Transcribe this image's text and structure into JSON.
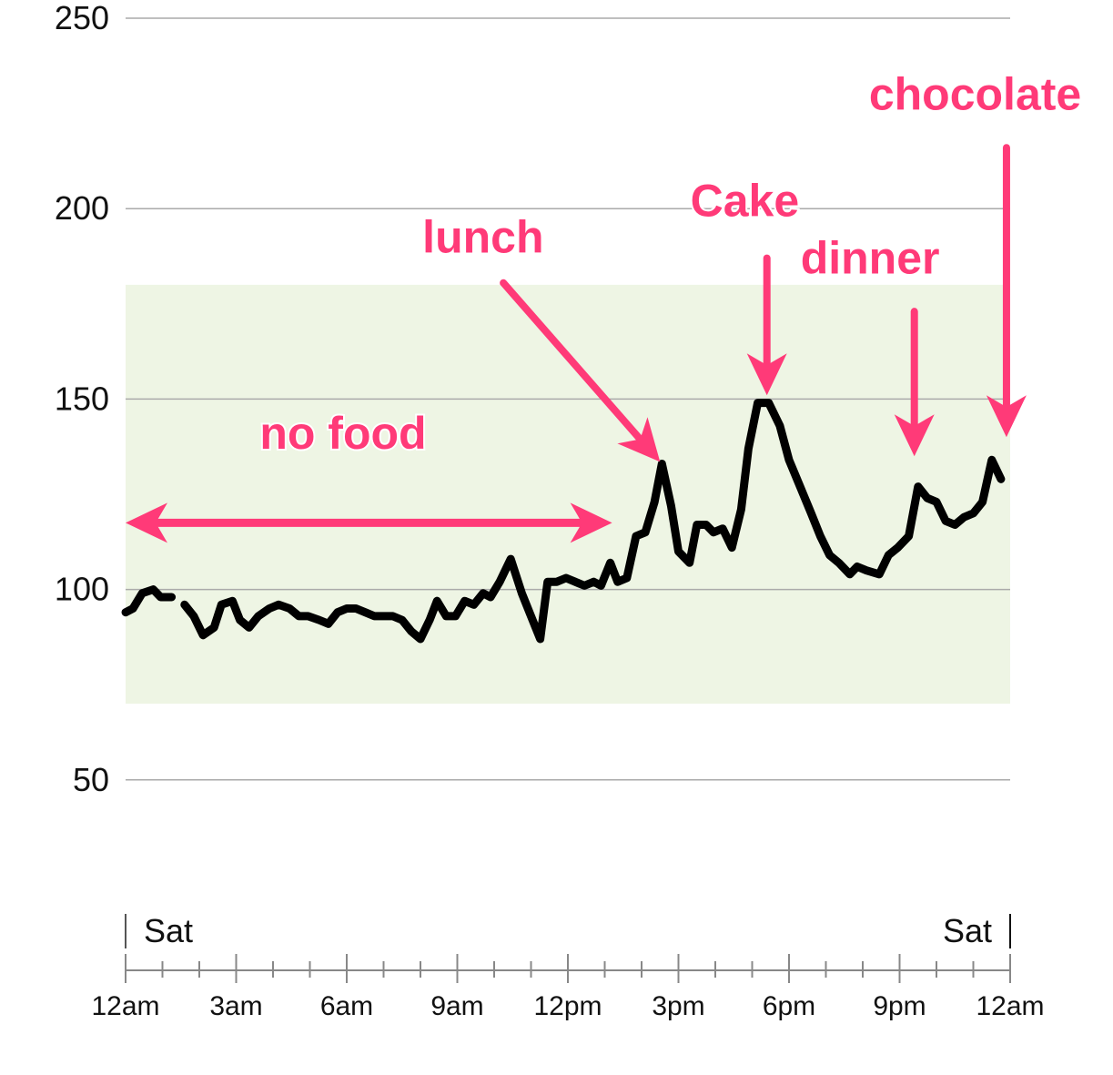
{
  "chart_data": {
    "type": "line",
    "ylim": [
      0,
      250
    ],
    "y_ticks": [
      50,
      100,
      150,
      200,
      250
    ],
    "xlim": [
      0,
      24
    ],
    "x_ticks": [
      {
        "hour": 0,
        "label": "12am"
      },
      {
        "hour": 3,
        "label": "3am"
      },
      {
        "hour": 6,
        "label": "6am"
      },
      {
        "hour": 9,
        "label": "9am"
      },
      {
        "hour": 12,
        "label": "12pm"
      },
      {
        "hour": 15,
        "label": "3pm"
      },
      {
        "hour": 18,
        "label": "6pm"
      },
      {
        "hour": 21,
        "label": "9pm"
      },
      {
        "hour": 24,
        "label": "12am"
      }
    ],
    "day_labels": {
      "start": "Sat",
      "end": "Sat"
    },
    "target_range": {
      "low": 70,
      "high": 180,
      "color": "#eef5e4"
    },
    "grid": true,
    "line_color": "#000000",
    "annotation_color": "#ff3a78",
    "series": [
      {
        "segments": [
          [
            [
              0.0,
              94
            ],
            [
              0.2,
              95
            ],
            [
              0.45,
              99
            ],
            [
              0.75,
              100
            ],
            [
              0.95,
              98
            ],
            [
              1.25,
              98
            ]
          ],
          [
            [
              1.6,
              96
            ],
            [
              1.85,
              93
            ],
            [
              2.1,
              88
            ],
            [
              2.4,
              90
            ],
            [
              2.6,
              96
            ],
            [
              2.9,
              97
            ],
            [
              3.1,
              92
            ],
            [
              3.35,
              90
            ],
            [
              3.6,
              93
            ],
            [
              3.9,
              95
            ],
            [
              4.15,
              96
            ],
            [
              4.45,
              95
            ],
            [
              4.7,
              93
            ],
            [
              4.95,
              93
            ],
            [
              5.25,
              92
            ],
            [
              5.5,
              91
            ],
            [
              5.75,
              94
            ],
            [
              6.0,
              95
            ],
            [
              6.25,
              95
            ],
            [
              6.5,
              94
            ],
            [
              6.75,
              93
            ],
            [
              7.0,
              93
            ],
            [
              7.25,
              93
            ],
            [
              7.5,
              92
            ],
            [
              7.75,
              89
            ],
            [
              8.0,
              87
            ],
            [
              8.25,
              92
            ],
            [
              8.45,
              97
            ],
            [
              8.7,
              93
            ],
            [
              8.95,
              93
            ],
            [
              9.2,
              97
            ],
            [
              9.45,
              96
            ],
            [
              9.7,
              99
            ],
            [
              9.9,
              98
            ],
            [
              10.15,
              102
            ],
            [
              10.45,
              108
            ],
            [
              10.75,
              99
            ],
            [
              11.0,
              93
            ],
            [
              11.25,
              87
            ],
            [
              11.45,
              102
            ],
            [
              11.7,
              102
            ],
            [
              11.95,
              103
            ],
            [
              12.2,
              102
            ],
            [
              12.45,
              101
            ],
            [
              12.7,
              102
            ],
            [
              12.9,
              101
            ],
            [
              13.15,
              107
            ],
            [
              13.35,
              102
            ],
            [
              13.6,
              103
            ],
            [
              13.85,
              114
            ],
            [
              14.1,
              115
            ],
            [
              14.35,
              123
            ],
            [
              14.55,
              133
            ],
            [
              14.8,
              122
            ],
            [
              15.0,
              110
            ],
            [
              15.3,
              107
            ],
            [
              15.5,
              117
            ],
            [
              15.75,
              117
            ],
            [
              15.95,
              115
            ],
            [
              16.2,
              116
            ],
            [
              16.45,
              111
            ],
            [
              16.7,
              121
            ],
            [
              16.9,
              137
            ],
            [
              17.15,
              149
            ],
            [
              17.45,
              149
            ],
            [
              17.75,
              143
            ],
            [
              18.0,
              134
            ],
            [
              18.3,
              127
            ],
            [
              18.6,
              120
            ],
            [
              18.85,
              114
            ],
            [
              19.1,
              109
            ],
            [
              19.35,
              107
            ],
            [
              19.65,
              104
            ],
            [
              19.85,
              106
            ],
            [
              20.1,
              105
            ],
            [
              20.45,
              104
            ],
            [
              20.7,
              109
            ],
            [
              20.95,
              111
            ],
            [
              21.25,
              114
            ],
            [
              21.5,
              127
            ],
            [
              21.75,
              124
            ],
            [
              22.0,
              123
            ],
            [
              22.25,
              118
            ],
            [
              22.5,
              117
            ],
            [
              22.75,
              119
            ],
            [
              23.0,
              120
            ],
            [
              23.25,
              123
            ],
            [
              23.5,
              134
            ],
            [
              23.75,
              129
            ]
          ]
        ]
      }
    ],
    "annotations": [
      {
        "text": "no food",
        "type": "double-arrow",
        "text_pos": [
          5.9,
          137
        ],
        "from": [
          0.0,
          117.5
        ],
        "to": [
          13.2,
          117.5
        ]
      },
      {
        "text": "lunch",
        "type": "arrow",
        "text_pos": [
          9.7,
          188.5
        ],
        "from": [
          10.25,
          180.5
        ],
        "to": [
          14.5,
          133.5
        ]
      },
      {
        "text": "Cake",
        "type": "arrow",
        "text_pos": [
          16.8,
          198
        ],
        "from": [
          17.4,
          187
        ],
        "to": [
          17.4,
          151
        ]
      },
      {
        "text": "dinner",
        "type": "arrow",
        "text_pos": [
          20.2,
          183
        ],
        "from": [
          21.4,
          173
        ],
        "to": [
          21.4,
          135
        ]
      },
      {
        "text": "chocolate",
        "type": "arrow",
        "text_pos": [
          23.05,
          226
        ],
        "from": [
          23.9,
          216
        ],
        "to": [
          23.9,
          140
        ]
      }
    ]
  }
}
